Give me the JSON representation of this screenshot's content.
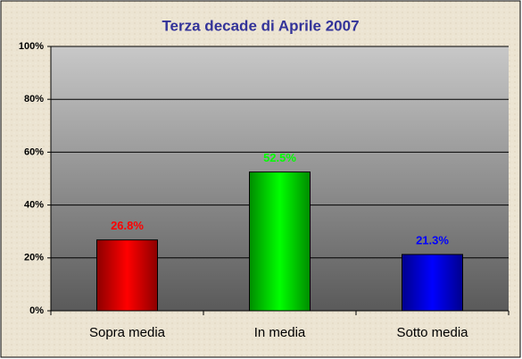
{
  "chart_data": {
    "type": "bar",
    "title": "Terza decade di Aprile 2007",
    "categories": [
      "Sopra media",
      "In media",
      "Sotto media"
    ],
    "values": [
      26.8,
      52.5,
      21.3
    ],
    "value_labels": [
      "26.8%",
      "52.5%",
      "21.3%"
    ],
    "colors": [
      "#ff0000",
      "#00ff00",
      "#0000ff"
    ],
    "ylim": [
      0,
      100
    ],
    "yticks": [
      {
        "value": 0,
        "label": "0%"
      },
      {
        "value": 20,
        "label": "20%"
      },
      {
        "value": 40,
        "label": "40%"
      },
      {
        "value": 60,
        "label": "60%"
      },
      {
        "value": 80,
        "label": "80%"
      },
      {
        "value": 100,
        "label": "100%"
      }
    ],
    "grid": true
  }
}
